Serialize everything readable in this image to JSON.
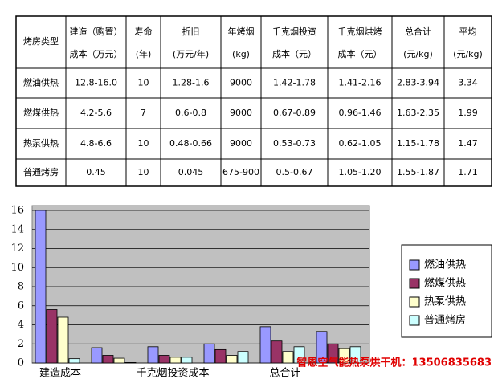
{
  "table": {
    "header": [
      [
        "烤房类型"
      ],
      [
        "建造（购置）",
        "成本（万元）"
      ],
      [
        "寿命",
        "(年)"
      ],
      [
        "折旧",
        "(万元/年)"
      ],
      [
        "年烤烟",
        "(kg)"
      ],
      [
        "千克烟投资",
        "成本（元）"
      ],
      [
        "千克烟烘烤",
        "成本（元）"
      ],
      [
        "总合计",
        "(元/kg)"
      ],
      [
        "平均",
        "(元/kg)"
      ]
    ],
    "rows": [
      [
        "燃油供热",
        "12.8-16.0",
        "10",
        "1.28-1.6",
        "9000",
        "1.42-1.78",
        "1.41-2.16",
        "2.83-3.94",
        "3.34"
      ],
      [
        "燃煤供热",
        "4.2-5.6",
        "7",
        "0.6-0.8",
        "9000",
        "0.67-0.89",
        "0.96-1.46",
        "1.63-2.35",
        "1.99"
      ],
      [
        "热泵供热",
        "4.8-6.6",
        "10",
        "0.48-0.66",
        "9000",
        "0.53-0.73",
        "0.62-1.05",
        "1.15-1.78",
        "1.47"
      ],
      [
        "普通烤房",
        "0.45",
        "10",
        "0.045",
        "675-900",
        "0.5-0.67",
        "1.05-1.20",
        "1.55-1.87",
        "1.71"
      ]
    ]
  },
  "chart_data": {
    "type": "bar",
    "categories": [
      "建造成本",
      null,
      "千克烟投资成本",
      null,
      "总合计",
      null
    ],
    "series": [
      {
        "name": "燃油供热",
        "color": "#9999ff",
        "values": [
          16,
          1.6,
          1.7,
          2.0,
          3.8,
          3.3
        ]
      },
      {
        "name": "燃煤供热",
        "color": "#993366",
        "values": [
          5.6,
          0.8,
          0.8,
          1.4,
          2.3,
          2.0
        ]
      },
      {
        "name": "热泵供热",
        "color": "#ffffcc",
        "values": [
          4.8,
          0.5,
          0.6,
          0.8,
          1.2,
          1.5
        ]
      },
      {
        "name": "普通烤房",
        "color": "#ccffff",
        "values": [
          0.45,
          0.05,
          0.6,
          1.2,
          1.7,
          1.7
        ]
      }
    ],
    "ylim": [
      0,
      16
    ],
    "yticks": [
      0,
      2,
      4,
      6,
      8,
      10,
      12,
      14,
      16
    ],
    "grid": true,
    "legend": "right"
  },
  "watermark": "智恩空气能热泵烘干机：13506835683"
}
